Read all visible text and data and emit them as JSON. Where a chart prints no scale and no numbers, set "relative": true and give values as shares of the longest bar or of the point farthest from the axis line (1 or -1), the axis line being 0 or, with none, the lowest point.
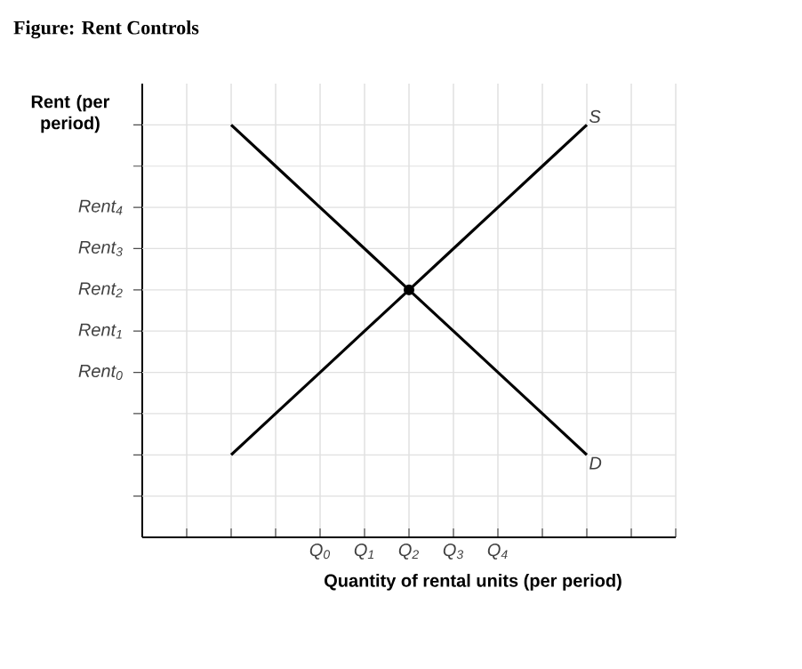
{
  "chart_data": {
    "type": "line",
    "title": "Figure: Rent Controls",
    "xlabel": "Quantity of rental units (per period)",
    "ylabel": "Rent (per period)",
    "relative": true,
    "categories": [
      null,
      null,
      null,
      "Q$_{0}$",
      "Q$_{1}$",
      "Q$_{2}$",
      "Q$_{3}$",
      "Q$_{4}$",
      null,
      null,
      null,
      null
    ],
    "series": [
      {
        "name": "S",
        "color": "#000000",
        "values": [
          null,
          0.2,
          0.3,
          0.4,
          0.5,
          0.6,
          0.7,
          0.8,
          0.9,
          1.0,
          null,
          null
        ]
      },
      {
        "name": "D",
        "color": "#000000",
        "values": [
          null,
          1.0,
          0.9,
          0.8,
          0.7,
          0.6,
          0.5,
          0.4,
          0.3,
          0.2,
          null,
          null
        ]
      },
      {
        "type": "scatter",
        "color": "#000000",
        "values": [
          null,
          null,
          null,
          null,
          null,
          0.6,
          null,
          null,
          null,
          null,
          null,
          null
        ]
      }
    ],
    "ref_lines": [
      {
        "axis": "y",
        "value": 0.1,
        "label": null,
        "color": "#e0e0e0"
      },
      {
        "axis": "y",
        "value": 0.2,
        "label": null,
        "color": "#e0e0e0"
      },
      {
        "axis": "y",
        "value": 0.3,
        "label": null,
        "color": "#e0e0e0"
      },
      {
        "axis": "y",
        "value": 0.4,
        "label": "Rent$_{0}$",
        "color": "#e0e0e0"
      },
      {
        "axis": "y",
        "value": 0.5,
        "label": "Rent$_{1}$",
        "color": "#e0e0e0"
      },
      {
        "axis": "y",
        "value": 0.6,
        "label": "Rent$_{2}$",
        "color": "#e0e0e0"
      },
      {
        "axis": "y",
        "value": 0.7,
        "label": "Rent$_{3}$",
        "color": "#e0e0e0"
      },
      {
        "axis": "y",
        "value": 0.8,
        "label": "Rent$_{4}$",
        "color": "#e0e0e0"
      },
      {
        "axis": "y",
        "value": 0.9,
        "label": null,
        "color": "#e0e0e0"
      },
      {
        "axis": "y",
        "value": 1.0,
        "label": null,
        "color": "#e0e0e0"
      }
    ],
    "grid": "x",
    "line_style": "solid"
  }
}
